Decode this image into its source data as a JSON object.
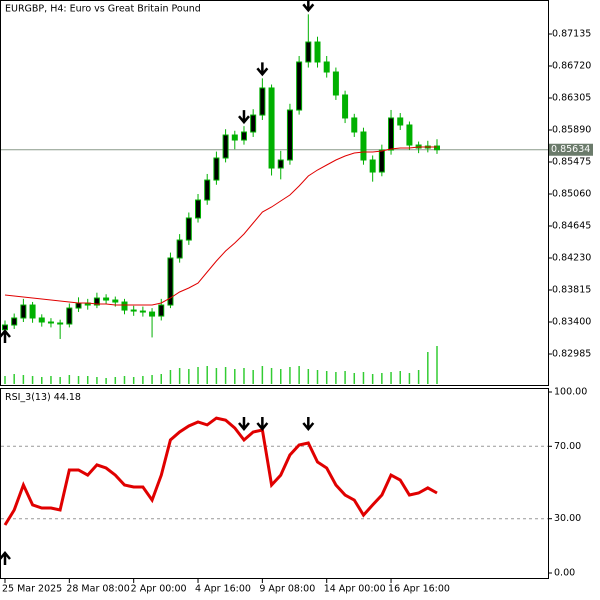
{
  "chart_data": {
    "type": "candlestick",
    "title": "EURGBP, H4:  Euro vs Great Britain Pound",
    "open": [
      0.833,
      0.83361,
      0.83452,
      0.8362,
      0.83452,
      0.834,
      0.83387,
      0.83374,
      0.83581,
      0.83646,
      0.8362,
      0.83711,
      0.83685,
      0.83659,
      0.83555,
      0.83542,
      0.83529,
      0.83477,
      0.8362,
      0.8423,
      0.84463,
      0.84749,
      0.84982,
      0.85241,
      0.85527,
      0.85825,
      0.8576,
      0.85864,
      0.86084,
      0.86435,
      0.85397,
      0.85501,
      0.86149,
      0.86772,
      0.87031,
      0.86772,
      0.86642,
      0.86344,
      0.86046,
      0.85864,
      0.85501,
      0.85345,
      0.8563,
      0.86046,
      0.85955,
      0.85695,
      0.85656,
      0.85682
    ],
    "high": [
      0.8342,
      0.8351,
      0.837,
      0.8366,
      0.835,
      0.8345,
      0.8343,
      0.8364,
      0.8372,
      0.837,
      0.8378,
      0.8376,
      0.8373,
      0.837,
      0.8361,
      0.836,
      0.8358,
      0.837,
      0.843,
      0.8454,
      0.8482,
      0.8506,
      0.8532,
      0.8561,
      0.859,
      0.8588,
      0.8594,
      0.8616,
      0.8656,
      0.8648,
      0.8562,
      0.8623,
      0.8685,
      0.8739,
      0.871,
      0.8685,
      0.867,
      0.864,
      0.861,
      0.8592,
      0.8556,
      0.857,
      0.8615,
      0.8611,
      0.86,
      0.8574,
      0.8575,
      0.8577
    ],
    "low": [
      0.8325,
      0.8331,
      0.834,
      0.8339,
      0.8334,
      0.8333,
      0.8318,
      0.8333,
      0.8353,
      0.8356,
      0.8358,
      0.8363,
      0.836,
      0.835,
      0.8348,
      0.8347,
      0.832,
      0.8342,
      0.8358,
      0.8417,
      0.844,
      0.8469,
      0.8492,
      0.8518,
      0.8547,
      0.8564,
      0.857,
      0.858,
      0.8602,
      0.853,
      0.8525,
      0.8544,
      0.8609,
      0.867,
      0.867,
      0.8657,
      0.8628,
      0.8598,
      0.858,
      0.8544,
      0.8522,
      0.8529,
      0.8557,
      0.8589,
      0.8563,
      0.8559,
      0.856,
      0.8558
    ],
    "close": [
      0.83361,
      0.83452,
      0.8362,
      0.83452,
      0.834,
      0.83387,
      0.83374,
      0.83581,
      0.83646,
      0.8362,
      0.83711,
      0.83685,
      0.83659,
      0.83555,
      0.83542,
      0.83529,
      0.83477,
      0.8362,
      0.8423,
      0.84463,
      0.84749,
      0.84982,
      0.85241,
      0.85527,
      0.85825,
      0.8576,
      0.85864,
      0.86084,
      0.86435,
      0.85397,
      0.85501,
      0.86149,
      0.86772,
      0.87031,
      0.86772,
      0.86642,
      0.86344,
      0.86046,
      0.85864,
      0.85501,
      0.85345,
      0.8563,
      0.86046,
      0.85955,
      0.85695,
      0.85656,
      0.85682,
      0.85634
    ],
    "up_color": "#00b000",
    "down_color": "#000000",
    "ylim": [
      0.82583,
      0.87576
    ],
    "yticks": [
      0.87135,
      {
        "value": 0.8672,
        "label": "0.86720"
      },
      0.86305,
      {
        "value": 0.8589,
        "label": "0.85890"
      },
      0.85475,
      {
        "value": 0.8506,
        "label": "0.85060"
      },
      0.84645,
      {
        "value": 0.8423,
        "label": "0.84230"
      },
      0.83815,
      {
        "value": 0.834,
        "label": "0.83400"
      },
      0.82985
    ],
    "ma": {
      "color": "#e00000",
      "values": [
        0.8375,
        0.83737,
        0.83724,
        0.83711,
        0.83698,
        0.83685,
        0.83672,
        0.83659,
        0.83646,
        0.83646,
        0.83633,
        0.83633,
        0.8362,
        0.8362,
        0.8362,
        0.8362,
        0.8362,
        0.83646,
        0.83711,
        0.83789,
        0.83841,
        0.83905,
        0.84048,
        0.84191,
        0.84321,
        0.84424,
        0.84541,
        0.84684,
        0.84826,
        0.84891,
        0.84969,
        0.85047,
        0.85164,
        0.85293,
        0.85371,
        0.85436,
        0.85501,
        0.85553,
        0.85592,
        0.85605,
        0.85605,
        0.85618,
        0.85643,
        0.85656,
        0.85656,
        0.85669,
        0.85669,
        0.85669
      ]
    },
    "volume": {
      "color": "#33cc33",
      "values": [
        8,
        10,
        9,
        8,
        7,
        8,
        7,
        9,
        8,
        8,
        7,
        6,
        7,
        8,
        7,
        8,
        9,
        10,
        14,
        16,
        15,
        17,
        18,
        16,
        17,
        15,
        16,
        14,
        18,
        16,
        15,
        17,
        18,
        15,
        14,
        13,
        12,
        13,
        11,
        12,
        10,
        11,
        12,
        13,
        11,
        14,
        32,
        38
      ]
    },
    "price_line_color": "#8a9a8a",
    "xticks": [
      {
        "value": 0,
        "label": "25 Mar 2025"
      },
      {
        "value": 7,
        "label": "28 Mar 08:00"
      },
      {
        "value": 14,
        "label": "2 Apr 00:00"
      },
      {
        "value": 21,
        "label": "4 Apr 16:00"
      },
      {
        "value": 28,
        "label": "9 Apr 08:00"
      },
      {
        "value": 35,
        "label": "14 Apr 00:00"
      },
      {
        "value": 42,
        "label": "16 Apr 16:00"
      }
    ],
    "signals": [
      {
        "index": 0,
        "direction": "up"
      },
      {
        "index": 26,
        "direction": "down"
      },
      {
        "index": 28,
        "direction": "down"
      },
      {
        "index": 33,
        "direction": "down"
      }
    ],
    "rsi": {
      "name": "RSI_3(13)",
      "color": "#e00000",
      "values": [
        26.5,
        34.8,
        48.6,
        37.6,
        35.9,
        35.9,
        34.8,
        56.9,
        56.9,
        54.1,
        59.7,
        58.0,
        54.1,
        48.6,
        47.5,
        47.5,
        40.3,
        54.1,
        73.5,
        77.9,
        81.2,
        83.4,
        81.8,
        85.6,
        84.5,
        80.1,
        73.5,
        77.9,
        79.0,
        48.6,
        54.1,
        65.2,
        70.7,
        71.8,
        61.3,
        58.0,
        48.6,
        43.1,
        40.3,
        32.0,
        37.6,
        43.1,
        54.1,
        51.4,
        43.1,
        44.2,
        47.0,
        44.18
      ],
      "ylim": [
        0,
        100
      ],
      "yticks": [
        {
          "value": 100,
          "label": "100.00"
        },
        {
          "value": 70,
          "label": "70.00"
        },
        {
          "value": 30,
          "label": "30.00"
        },
        {
          "value": 0,
          "label": "0.00"
        }
      ],
      "levels": [
        70,
        30
      ]
    }
  }
}
